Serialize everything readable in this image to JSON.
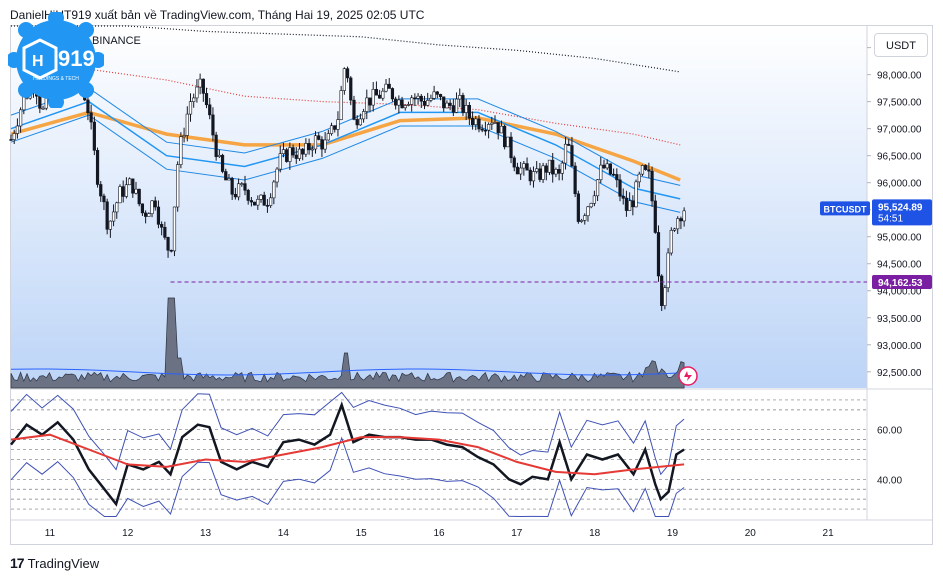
{
  "header": {
    "publisher_text": "DanielHiHT919 xuất bản về TradingView.com, Tháng Hai 19, 2025 02:05 UTC",
    "symbol_line": "BINANCE"
  },
  "logo": {
    "text": "919",
    "tagline": "HOLDINGS & TECH",
    "color": "#2196f3"
  },
  "currency_button": "USDT",
  "footer": {
    "brand": "TradingView"
  },
  "price_badges": {
    "symbol": "BTCUSDT",
    "last_price": "95,524.89",
    "countdown": "54:51",
    "marked_level": "94,162.53"
  },
  "colors": {
    "up_candle": "#131722",
    "down_candle": "#131722",
    "ema_fast": "#2196f3",
    "ema_mid": "#1e88e5",
    "ema_orange": "#f6a545",
    "ma_red_dotted": "#e53935",
    "ma_black_dotted": "#131722",
    "level_line": "#7b1fa2",
    "rsi_line": "#131722",
    "rsi_ma": "#e53935",
    "bands": "#3f51b5",
    "gradient_top": "#ffffff",
    "gradient_bottom": "#bcd4f7"
  },
  "chart_data": [
    {
      "type": "candlestick",
      "title": "",
      "symbol": "BTCUSDT",
      "exchange": "BINANCE",
      "x_ticks": [
        "11",
        "12",
        "13",
        "14",
        "15",
        "16",
        "17",
        "18",
        "19",
        "20",
        "21"
      ],
      "y_ticks": [
        "98,500.00",
        "98,000.00",
        "97,500.00",
        "97,000.00",
        "96,500.00",
        "96,000.00",
        "95,500.00",
        "95,000.00",
        "94,500.00",
        "94,000.00",
        "93,500.00",
        "93,000.00",
        "92,500.00"
      ],
      "ylim": [
        92200,
        98900
      ],
      "xlim": [
        10.5,
        21.5
      ],
      "last_price": 95524.89,
      "marked_level": 94162.53,
      "close_series": [
        {
          "x": 10.5,
          "y": 96800
        },
        {
          "x": 10.65,
          "y": 97500
        },
        {
          "x": 10.8,
          "y": 97900
        },
        {
          "x": 10.9,
          "y": 97300
        },
        {
          "x": 11.0,
          "y": 97500
        },
        {
          "x": 11.1,
          "y": 98000
        },
        {
          "x": 11.2,
          "y": 97800
        },
        {
          "x": 11.35,
          "y": 98200
        },
        {
          "x": 11.5,
          "y": 97300
        },
        {
          "x": 11.6,
          "y": 96200
        },
        {
          "x": 11.75,
          "y": 95200
        },
        {
          "x": 11.9,
          "y": 95800
        },
        {
          "x": 12.05,
          "y": 96000
        },
        {
          "x": 12.2,
          "y": 95400
        },
        {
          "x": 12.35,
          "y": 95700
        },
        {
          "x": 12.45,
          "y": 95000
        },
        {
          "x": 12.55,
          "y": 94700
        },
        {
          "x": 12.65,
          "y": 96500
        },
        {
          "x": 12.8,
          "y": 97500
        },
        {
          "x": 12.95,
          "y": 97800
        },
        {
          "x": 13.05,
          "y": 97200
        },
        {
          "x": 13.2,
          "y": 96200
        },
        {
          "x": 13.35,
          "y": 95800
        },
        {
          "x": 13.5,
          "y": 95900
        },
        {
          "x": 13.65,
          "y": 95600
        },
        {
          "x": 13.8,
          "y": 95700
        },
        {
          "x": 13.95,
          "y": 96400
        },
        {
          "x": 14.1,
          "y": 96600
        },
        {
          "x": 14.25,
          "y": 96500
        },
        {
          "x": 14.4,
          "y": 96800
        },
        {
          "x": 14.55,
          "y": 96700
        },
        {
          "x": 14.7,
          "y": 97200
        },
        {
          "x": 14.8,
          "y": 98300
        },
        {
          "x": 14.9,
          "y": 97100
        },
        {
          "x": 15.05,
          "y": 97500
        },
        {
          "x": 15.2,
          "y": 97600
        },
        {
          "x": 15.35,
          "y": 97700
        },
        {
          "x": 15.5,
          "y": 97500
        },
        {
          "x": 15.65,
          "y": 97600
        },
        {
          "x": 15.8,
          "y": 97500
        },
        {
          "x": 15.95,
          "y": 97600
        },
        {
          "x": 16.1,
          "y": 97400
        },
        {
          "x": 16.25,
          "y": 97500
        },
        {
          "x": 16.4,
          "y": 97200
        },
        {
          "x": 16.55,
          "y": 97100
        },
        {
          "x": 16.7,
          "y": 97200
        },
        {
          "x": 16.85,
          "y": 96800
        },
        {
          "x": 17.0,
          "y": 96300
        },
        {
          "x": 17.1,
          "y": 96200
        },
        {
          "x": 17.25,
          "y": 96100
        },
        {
          "x": 17.4,
          "y": 96300
        },
        {
          "x": 17.55,
          "y": 96100
        },
        {
          "x": 17.65,
          "y": 96800
        },
        {
          "x": 17.8,
          "y": 95300
        },
        {
          "x": 17.95,
          "y": 95700
        },
        {
          "x": 18.1,
          "y": 96300
        },
        {
          "x": 18.25,
          "y": 96100
        },
        {
          "x": 18.4,
          "y": 95500
        },
        {
          "x": 18.5,
          "y": 95700
        },
        {
          "x": 18.6,
          "y": 96200
        },
        {
          "x": 18.7,
          "y": 96100
        },
        {
          "x": 18.78,
          "y": 95200
        },
        {
          "x": 18.85,
          "y": 93800
        },
        {
          "x": 18.92,
          "y": 94300
        },
        {
          "x": 19.0,
          "y": 95200
        },
        {
          "x": 19.08,
          "y": 95400
        },
        {
          "x": 19.15,
          "y": 95525
        }
      ],
      "overlays": [
        {
          "label": "MA (dotted, black)",
          "points": [
            [
              10.5,
              99100
            ],
            [
              12,
              98900
            ],
            [
              13,
              98800
            ],
            [
              14,
              98750
            ],
            [
              15,
              98700
            ],
            [
              16,
              98550
            ],
            [
              17,
              98450
            ],
            [
              18,
              98300
            ],
            [
              19.1,
              98050
            ]
          ]
        },
        {
          "label": "MA (dotted, red)",
          "points": [
            [
              10.5,
              98300
            ],
            [
              11.5,
              98100
            ],
            [
              12.5,
              97900
            ],
            [
              13.5,
              97600
            ],
            [
              14.5,
              97500
            ],
            [
              15.5,
              97450
            ],
            [
              16.5,
              97350
            ],
            [
              17.5,
              97100
            ],
            [
              18.5,
              96900
            ],
            [
              19.1,
              96700
            ]
          ]
        },
        {
          "label": "EMA (orange)",
          "points": [
            [
              10.5,
              96900
            ],
            [
              11.5,
              97300
            ],
            [
              12.5,
              96900
            ],
            [
              13.5,
              96700
            ],
            [
              14.5,
              96700
            ],
            [
              15.5,
              97150
            ],
            [
              16.5,
              97200
            ],
            [
              17.5,
              96900
            ],
            [
              18.5,
              96400
            ],
            [
              19.1,
              96050
            ]
          ]
        },
        {
          "label": "EMA (blue)",
          "points": [
            [
              10.5,
              97000
            ],
            [
              11.5,
              97500
            ],
            [
              12.5,
              96500
            ],
            [
              13.5,
              96300
            ],
            [
              14.5,
              96700
            ],
            [
              15.5,
              97300
            ],
            [
              16.5,
              97300
            ],
            [
              17.5,
              96700
            ],
            [
              18.5,
              95900
            ],
            [
              19.1,
              95700
            ]
          ]
        }
      ]
    },
    {
      "type": "line",
      "title": "",
      "panel": "oscillator",
      "y_ticks": [
        "60.00",
        "40.00"
      ],
      "ylim": [
        24,
        76
      ],
      "xlim": [
        10.5,
        21.5
      ],
      "series": [
        {
          "label": "oscillator",
          "points": [
            [
              10.5,
              54
            ],
            [
              10.7,
              62
            ],
            [
              10.9,
              58
            ],
            [
              11.1,
              63
            ],
            [
              11.3,
              56
            ],
            [
              11.5,
              44
            ],
            [
              11.7,
              36
            ],
            [
              11.85,
              30
            ],
            [
              12.0,
              46
            ],
            [
              12.2,
              44
            ],
            [
              12.4,
              47
            ],
            [
              12.55,
              42
            ],
            [
              12.7,
              57
            ],
            [
              12.9,
              62
            ],
            [
              13.05,
              61
            ],
            [
              13.2,
              47
            ],
            [
              13.4,
              44
            ],
            [
              13.6,
              47
            ],
            [
              13.8,
              45
            ],
            [
              14.0,
              55
            ],
            [
              14.2,
              56
            ],
            [
              14.4,
              54
            ],
            [
              14.6,
              58
            ],
            [
              14.75,
              70
            ],
            [
              14.9,
              55
            ],
            [
              15.1,
              58
            ],
            [
              15.3,
              57
            ],
            [
              15.5,
              57
            ],
            [
              15.7,
              56
            ],
            [
              15.9,
              56
            ],
            [
              16.1,
              54
            ],
            [
              16.3,
              53
            ],
            [
              16.5,
              49
            ],
            [
              16.7,
              46
            ],
            [
              16.9,
              40
            ],
            [
              17.05,
              38
            ],
            [
              17.2,
              41
            ],
            [
              17.4,
              40
            ],
            [
              17.55,
              55
            ],
            [
              17.7,
              40
            ],
            [
              17.9,
              50
            ],
            [
              18.1,
              48
            ],
            [
              18.3,
              50
            ],
            [
              18.5,
              42
            ],
            [
              18.65,
              52
            ],
            [
              18.78,
              38
            ],
            [
              18.85,
              32
            ],
            [
              18.95,
              35
            ],
            [
              19.05,
              50
            ],
            [
              19.15,
              52
            ]
          ]
        },
        {
          "label": "oscillator MA",
          "points": [
            [
              10.5,
              56
            ],
            [
              11.0,
              58
            ],
            [
              11.5,
              52
            ],
            [
              12.0,
              46
            ],
            [
              12.5,
              45
            ],
            [
              13.0,
              48
            ],
            [
              13.5,
              47
            ],
            [
              14.0,
              50
            ],
            [
              14.5,
              53
            ],
            [
              15.0,
              57
            ],
            [
              15.5,
              57
            ],
            [
              16.0,
              56
            ],
            [
              16.5,
              53
            ],
            [
              17.0,
              47
            ],
            [
              17.5,
              43
            ],
            [
              18.0,
              42
            ],
            [
              18.5,
              44
            ],
            [
              19.15,
              46
            ]
          ]
        }
      ]
    }
  ]
}
